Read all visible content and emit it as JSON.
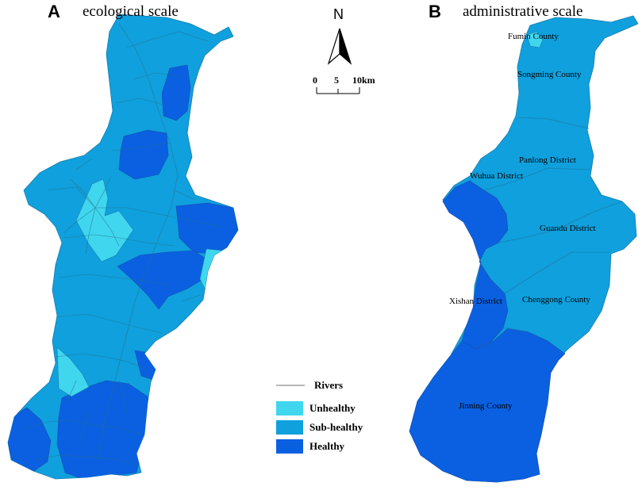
{
  "panel_a": {
    "letter": "A",
    "title": "ecological scale"
  },
  "panel_b": {
    "letter": "B",
    "title": "administrative scale",
    "districts": [
      {
        "name": "Fumin County",
        "health": "Unhealthy"
      },
      {
        "name": "Songming County",
        "health": "Sub-healthy"
      },
      {
        "name": "Panlong District",
        "health": "Sub-healthy"
      },
      {
        "name": "Wuhua District",
        "health": "Sub-healthy"
      },
      {
        "name": "Guandu District",
        "health": "Sub-healthy"
      },
      {
        "name": "Xishan District",
        "health": "Healthy"
      },
      {
        "name": "Chenggong County",
        "health": "Sub-healthy"
      },
      {
        "name": "Jinning County",
        "health": "Healthy"
      }
    ]
  },
  "north_arrow": {
    "label": "N"
  },
  "scale_bar": {
    "ticks": [
      "0",
      "5",
      "10km"
    ]
  },
  "legend": {
    "rivers_label": "Rivers",
    "items": [
      {
        "label": "Unhealthy",
        "color": "#3fd6ee"
      },
      {
        "label": "Sub-healthy",
        "color": "#0fa0dd"
      },
      {
        "label": "Healthy",
        "color": "#0a60e0"
      }
    ],
    "river_color": "#2a6f88"
  }
}
